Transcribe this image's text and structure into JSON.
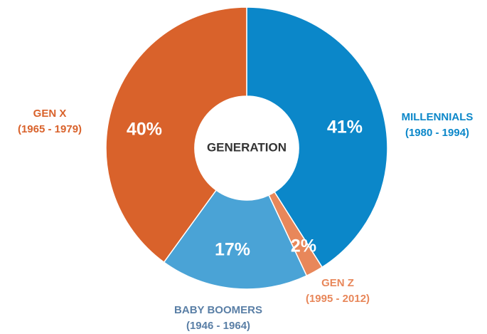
{
  "chart_data": {
    "type": "donut",
    "center_label": "GENERATION",
    "categories": [
      "MILLENNIALS",
      "GEN Z",
      "BABY BOOMERS",
      "GEN X"
    ],
    "category_years": [
      "(1980 - 1994)",
      "(1995 - 2012)",
      "(1946 - 1964)",
      "(1965 - 1979)"
    ],
    "values": [
      41,
      2,
      17,
      40
    ],
    "value_labels": [
      "41%",
      "2%",
      "17%",
      "40%"
    ],
    "colors": [
      "#0b87c9",
      "#e8875a",
      "#4aa3d6",
      "#d9622b"
    ],
    "label_colors": [
      "#0b87c9",
      "#e8875a",
      "#5a7fa6",
      "#d9622b"
    ]
  }
}
